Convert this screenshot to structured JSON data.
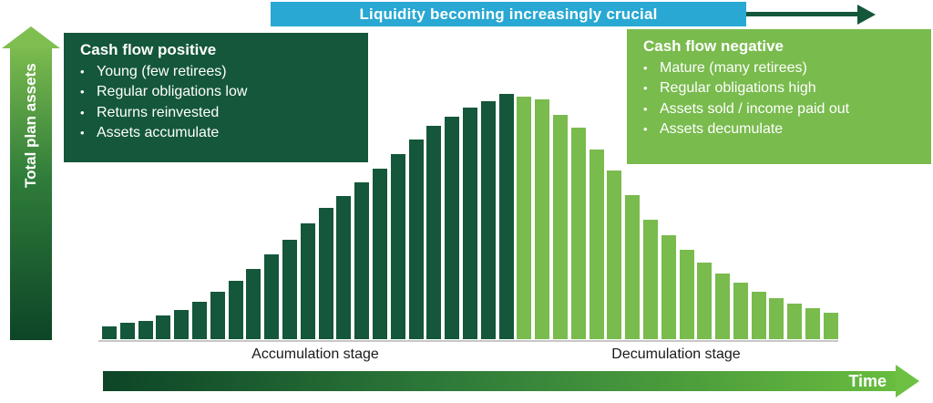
{
  "banner": {
    "label": "Liquidity becoming increasingly crucial"
  },
  "left_axis": {
    "label": "Total plan assets"
  },
  "boxes": {
    "positive": {
      "title": "Cash flow positive",
      "bullets": [
        "Young (few retirees)",
        "Regular obligations low",
        "Returns reinvested",
        "Assets accumulate"
      ]
    },
    "negative": {
      "title": "Cash flow negative",
      "bullets": [
        "Mature (many retirees)",
        "Regular obligations high",
        "Assets sold / income paid out",
        "Assets decumulate"
      ]
    }
  },
  "stages": {
    "accumulation": "Accumulation stage",
    "decumulation": "Decumulation stage"
  },
  "time_axis": {
    "label": "Time"
  },
  "colors": {
    "dark_green": "#14573a",
    "light_green": "#79bb4d",
    "cyan": "#28a8d2"
  },
  "chart_data": {
    "type": "bar",
    "title": "Liquidity becoming increasingly crucial",
    "xlabel": "Time",
    "ylabel": "Total plan assets",
    "ylim": [
      0,
      280
    ],
    "grid": false,
    "legend": "none (series distinguished by color and stage labels under x-axis)",
    "series": [
      {
        "name": "Accumulation stage",
        "color": "#14573a",
        "values": [
          14,
          18,
          20,
          26,
          32,
          41,
          52,
          64,
          77,
          93,
          109,
          127,
          144,
          157,
          172,
          187,
          203,
          219,
          234,
          244,
          254,
          261,
          269
        ]
      },
      {
        "name": "Decumulation stage",
        "color": "#79bb4d",
        "values": [
          266,
          263,
          246,
          232,
          208,
          185,
          158,
          131,
          114,
          98,
          84,
          72,
          62,
          52,
          45,
          39,
          34,
          29
        ]
      }
    ],
    "value_scale": "relative total plan assets (axes carry no numeric tick labels)"
  }
}
